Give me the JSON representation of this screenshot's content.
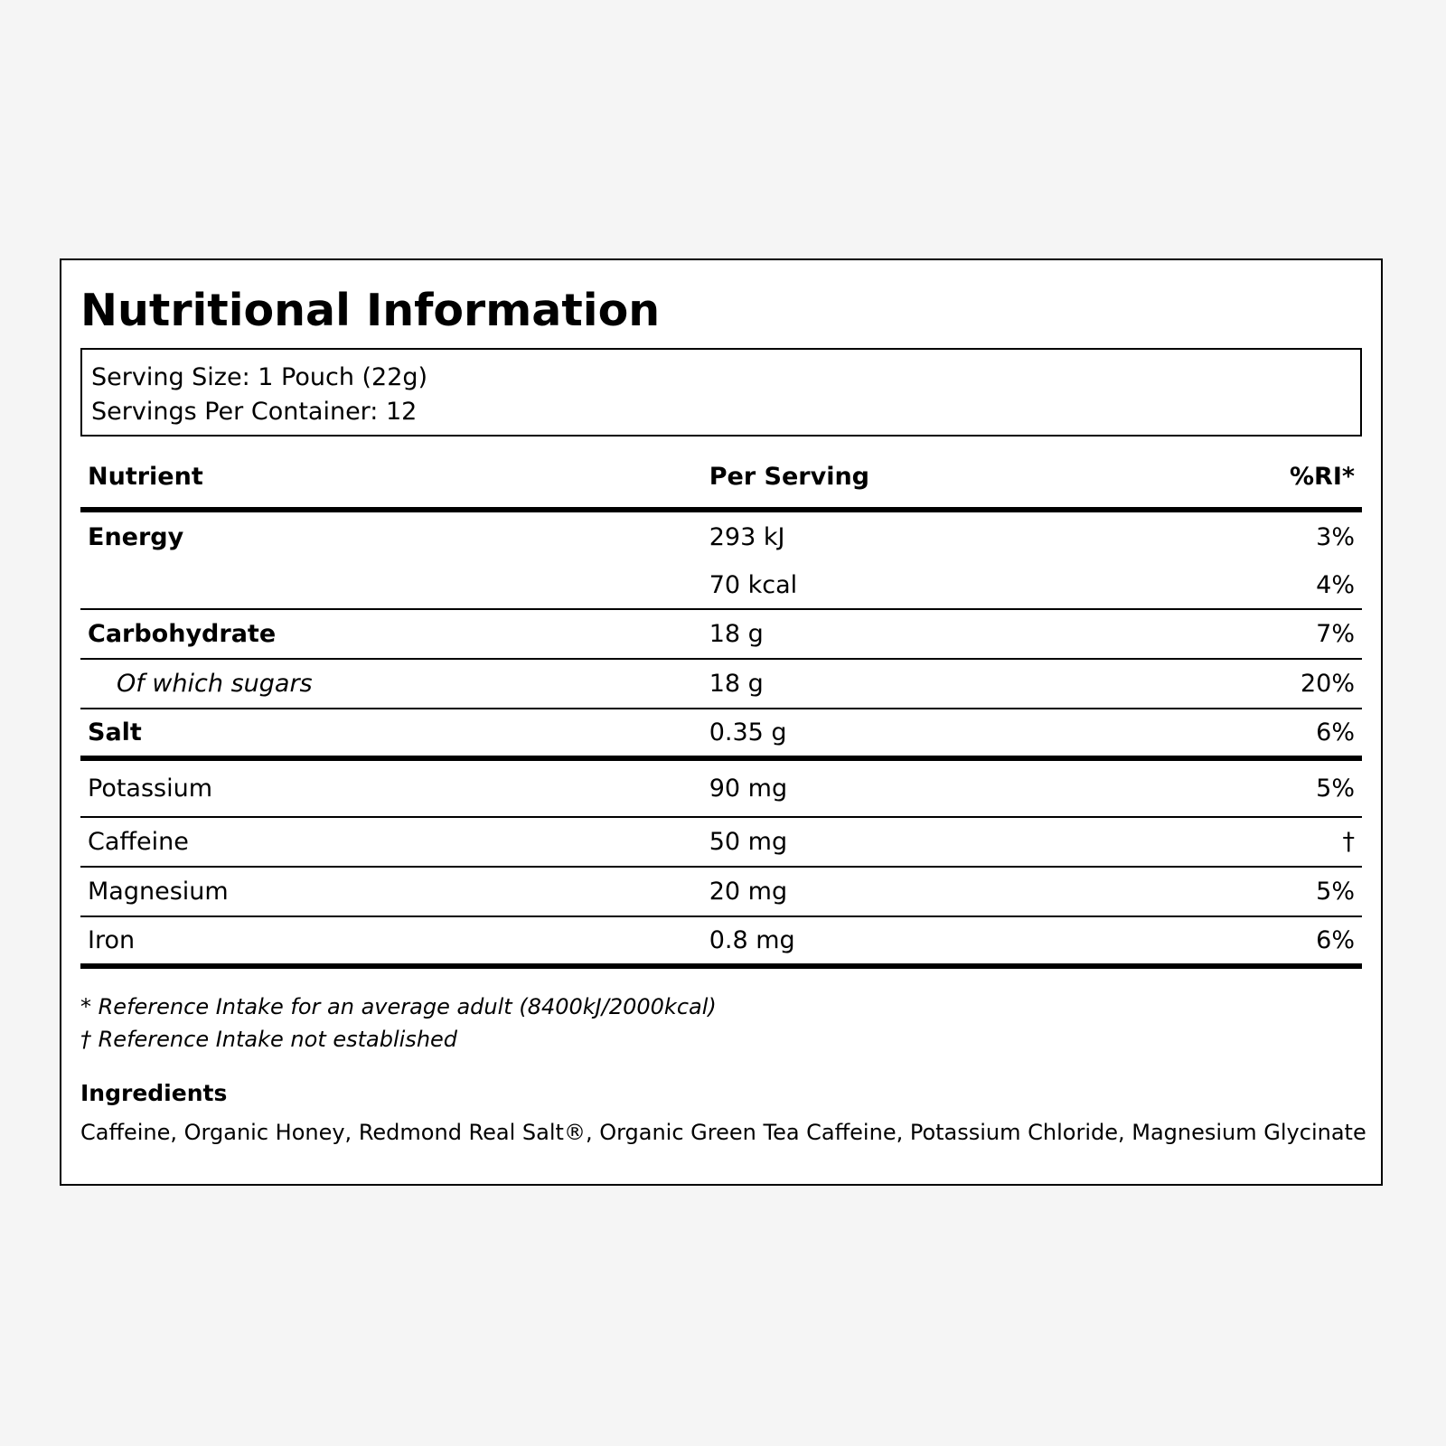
{
  "title": "Nutritional Information",
  "serving": {
    "size": "Serving Size: 1 Pouch (22g)",
    "per_container": "Servings Per Container: 12"
  },
  "table": {
    "headers": [
      "Nutrient",
      "Per Serving",
      "%RI*"
    ],
    "rows": [
      {
        "nutrient": "Energy",
        "amount": "293 kJ",
        "ri": "3%"
      },
      {
        "nutrient": "",
        "amount": "70 kcal",
        "ri": "4%"
      },
      {
        "nutrient": "Carbohydrate",
        "amount": "18 g",
        "ri": "7%"
      },
      {
        "nutrient": "Of which sugars",
        "amount": "18 g",
        "ri": "20%"
      },
      {
        "nutrient": "Salt",
        "amount": "0.35 g",
        "ri": "6%"
      },
      {
        "nutrient": "Potassium",
        "amount": "90 mg",
        "ri": "5%"
      },
      {
        "nutrient": "Caffeine",
        "amount": "50 mg",
        "ri": "†"
      },
      {
        "nutrient": "Magnesium",
        "amount": "20 mg",
        "ri": "5%"
      },
      {
        "nutrient": "Iron",
        "amount": "0.8 mg",
        "ri": "6%"
      }
    ]
  },
  "footnotes": [
    "* Reference Intake for an average adult (8400kJ/2000kcal)",
    "† Reference Intake not established"
  ],
  "ingredients": {
    "title": "Ingredients",
    "text": "Caffeine, Organic Honey, Redmond Real Salt®, Organic Green Tea Caffeine, Potassium Chloride, Magnesium Glycinate"
  }
}
